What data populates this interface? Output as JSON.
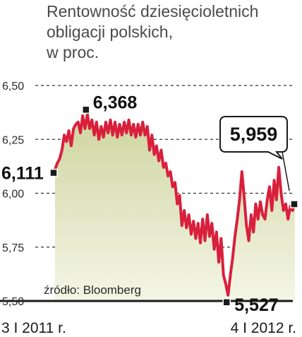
{
  "title_lines": [
    "Rentowność dziesięcioletnich",
    "obligacji polskich,",
    "w proc."
  ],
  "source": "źródło: Bloomberg",
  "colors": {
    "line": "#d8203c",
    "area_top": "#cfd4a0",
    "area_bottom": "#f4f6e6",
    "baseline": "#1a1a1a",
    "grid": "#333333",
    "marker": "#1a1a1a"
  },
  "chart_data": {
    "type": "line",
    "title": "Rentowność dziesięcioletnich obligacji polskich, w proc.",
    "ylim": [
      5.5,
      6.5
    ],
    "yticks": [
      "6,50",
      "6,25",
      "6,00",
      "5,75",
      "5,50"
    ],
    "ytick_values": [
      6.5,
      6.25,
      6.0,
      5.75,
      5.5
    ],
    "x_start_label": "3 I 2011 r.",
    "x_end_label": "4 I 2012 r.",
    "grid": "dashed horizontal",
    "series": [
      {
        "values": [
          6.111,
          6.14,
          6.16,
          6.2,
          6.27,
          6.24,
          6.29,
          6.22,
          6.3,
          6.32,
          6.33,
          6.28,
          6.36,
          6.3,
          6.368,
          6.3,
          6.34,
          6.27,
          6.33,
          6.25,
          6.31,
          6.26,
          6.33,
          6.28,
          6.34,
          6.27,
          6.33,
          6.26,
          6.32,
          6.27,
          6.33,
          6.28,
          6.34,
          6.27,
          6.32,
          6.26,
          6.32,
          6.27,
          6.33,
          6.27,
          6.31,
          6.2,
          6.27,
          6.18,
          6.22,
          6.15,
          6.2,
          6.12,
          6.14,
          6.08,
          6.1,
          6.03,
          6.05,
          5.95,
          5.99,
          5.85,
          5.92,
          5.84,
          5.9,
          5.81,
          5.87,
          5.79,
          5.86,
          5.77,
          5.88,
          5.78,
          5.9,
          5.8,
          5.86,
          5.74,
          5.82,
          5.68,
          5.79,
          5.62,
          5.58,
          5.527,
          5.62,
          5.7,
          5.8,
          5.88,
          5.97,
          6.1,
          5.98,
          5.85,
          5.78,
          5.9,
          5.82,
          5.95,
          5.88,
          5.96,
          5.9,
          5.88,
          5.97,
          6.03,
          5.92,
          6.06,
          5.97,
          6.12,
          6.0,
          5.92,
          5.95,
          5.88,
          5.94,
          5.92,
          5.959
        ]
      }
    ],
    "annotations": [
      {
        "label": "6,111",
        "value": 6.111,
        "position": "start"
      },
      {
        "label": "6,368",
        "value": 6.368,
        "position": "max"
      },
      {
        "label": "5,527",
        "value": 5.527,
        "position": "min"
      },
      {
        "label": "5,959",
        "value": 5.959,
        "position": "end"
      }
    ]
  }
}
